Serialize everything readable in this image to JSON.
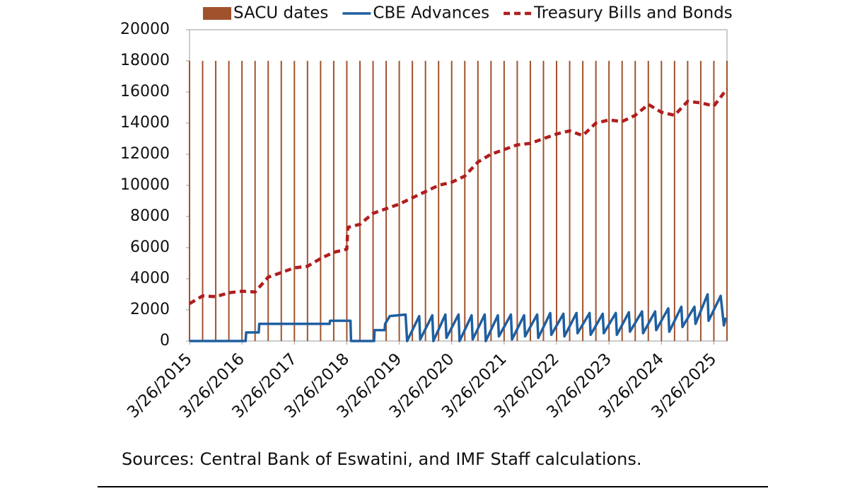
{
  "chart_data": {
    "type": "line",
    "legend": "top",
    "xlim": [
      2015.23,
      2025.48
    ],
    "xticks": [
      {
        "value": 2015.23,
        "label": "3/26/2015"
      },
      {
        "value": 2016.23,
        "label": "3/26/2016"
      },
      {
        "value": 2017.23,
        "label": "3/26/2017"
      },
      {
        "value": 2018.23,
        "label": "3/26/2018"
      },
      {
        "value": 2019.23,
        "label": "3/26/2019"
      },
      {
        "value": 2020.23,
        "label": "3/26/2020"
      },
      {
        "value": 2021.23,
        "label": "3/26/2021"
      },
      {
        "value": 2022.23,
        "label": "3/26/2022"
      },
      {
        "value": 2023.23,
        "label": "3/26/2023"
      },
      {
        "value": 2024.23,
        "label": "3/26/2024"
      },
      {
        "value": 2025.23,
        "label": "3/26/2025"
      }
    ],
    "ylim": [
      0,
      20000
    ],
    "yticks": [
      0,
      2000,
      4000,
      6000,
      8000,
      10000,
      12000,
      14000,
      16000,
      18000,
      20000
    ],
    "series": [
      {
        "name": "SACU dates",
        "type": "bar",
        "color": "#a0522d",
        "x": [
          2015.23,
          2015.48,
          2015.73,
          2015.98,
          2016.23,
          2016.48,
          2016.73,
          2016.98,
          2017.23,
          2017.48,
          2017.73,
          2017.98,
          2018.23,
          2018.48,
          2018.73,
          2018.98,
          2019.23,
          2019.48,
          2019.73,
          2019.98,
          2020.23,
          2020.48,
          2020.73,
          2020.98,
          2021.23,
          2021.48,
          2021.73,
          2021.98,
          2022.23,
          2022.48,
          2022.73,
          2022.98,
          2023.23,
          2023.48,
          2023.73,
          2023.98,
          2024.23,
          2024.48,
          2024.73,
          2024.98,
          2025.23,
          2025.48
        ],
        "values": [
          18000,
          18000,
          18000,
          18000,
          18000,
          18000,
          18000,
          18000,
          18000,
          18000,
          18000,
          18000,
          18000,
          18000,
          18000,
          18000,
          18000,
          18000,
          18000,
          18000,
          18000,
          18000,
          18000,
          18000,
          18000,
          18000,
          18000,
          18000,
          18000,
          18000,
          18000,
          18000,
          18000,
          18000,
          18000,
          18000,
          18000,
          18000,
          18000,
          18000,
          18000,
          18000
        ]
      },
      {
        "name": "CBE Advances",
        "type": "line",
        "color": "#1f5fa0",
        "x": [
          2015.23,
          2016.3,
          2016.31,
          2016.55,
          2016.56,
          2017.9,
          2017.91,
          2018.3,
          2018.31,
          2018.75,
          2018.76,
          2018.95,
          2018.96,
          2019.05,
          2019.35,
          2019.38,
          2019.61,
          2019.63,
          2019.86,
          2019.88,
          2020.11,
          2020.13,
          2020.36,
          2020.38,
          2020.61,
          2020.63,
          2020.86,
          2020.88,
          2021.11,
          2021.13,
          2021.36,
          2021.38,
          2021.61,
          2021.63,
          2021.86,
          2021.88,
          2022.11,
          2022.13,
          2022.36,
          2022.38,
          2022.61,
          2022.63,
          2022.86,
          2022.88,
          2023.11,
          2023.13,
          2023.36,
          2023.38,
          2023.61,
          2023.63,
          2023.86,
          2023.88,
          2024.11,
          2024.13,
          2024.36,
          2024.38,
          2024.61,
          2024.63,
          2024.86,
          2024.88,
          2025.11,
          2025.13,
          2025.36,
          2025.42,
          2025.46
        ],
        "values": [
          0,
          0,
          550,
          550,
          1100,
          1100,
          1300,
          1300,
          0,
          0,
          700,
          700,
          1100,
          1600,
          1700,
          0,
          1600,
          100,
          1650,
          0,
          1700,
          200,
          1700,
          0,
          1650,
          100,
          1700,
          0,
          1650,
          300,
          1700,
          100,
          1650,
          300,
          1700,
          200,
          1800,
          400,
          1750,
          300,
          1800,
          500,
          1800,
          400,
          1750,
          500,
          1800,
          400,
          1850,
          600,
          1900,
          500,
          1900,
          700,
          2100,
          600,
          2200,
          900,
          2200,
          1100,
          3000,
          1300,
          2900,
          1000,
          1500
        ]
      },
      {
        "name": "Treasury Bills and Bonds",
        "type": "line",
        "dash": true,
        "color": "#b01e1e",
        "x": [
          2015.23,
          2015.48,
          2015.73,
          2015.98,
          2016.23,
          2016.48,
          2016.73,
          2016.98,
          2017.23,
          2017.48,
          2017.73,
          2017.98,
          2018.23,
          2018.25,
          2018.48,
          2018.73,
          2018.98,
          2019.23,
          2019.48,
          2019.73,
          2019.98,
          2020.23,
          2020.48,
          2020.73,
          2020.98,
          2021.23,
          2021.48,
          2021.73,
          2021.98,
          2022.23,
          2022.48,
          2022.73,
          2022.98,
          2023.23,
          2023.48,
          2023.73,
          2023.98,
          2024.23,
          2024.48,
          2024.73,
          2024.98,
          2025.23,
          2025.48
        ],
        "values": [
          2400,
          2900,
          2850,
          3100,
          3200,
          3150,
          4100,
          4400,
          4700,
          4800,
          5300,
          5700,
          5900,
          7300,
          7500,
          8200,
          8500,
          8800,
          9200,
          9600,
          10000,
          10200,
          10600,
          11500,
          12000,
          12300,
          12600,
          12700,
          13000,
          13300,
          13500,
          13200,
          14000,
          14200,
          14100,
          14500,
          15200,
          14700,
          14500,
          15400,
          15300,
          15100,
          16200
        ]
      }
    ],
    "note": "Sources: Central Bank of Eswatini, and IMF Staff calculations."
  }
}
